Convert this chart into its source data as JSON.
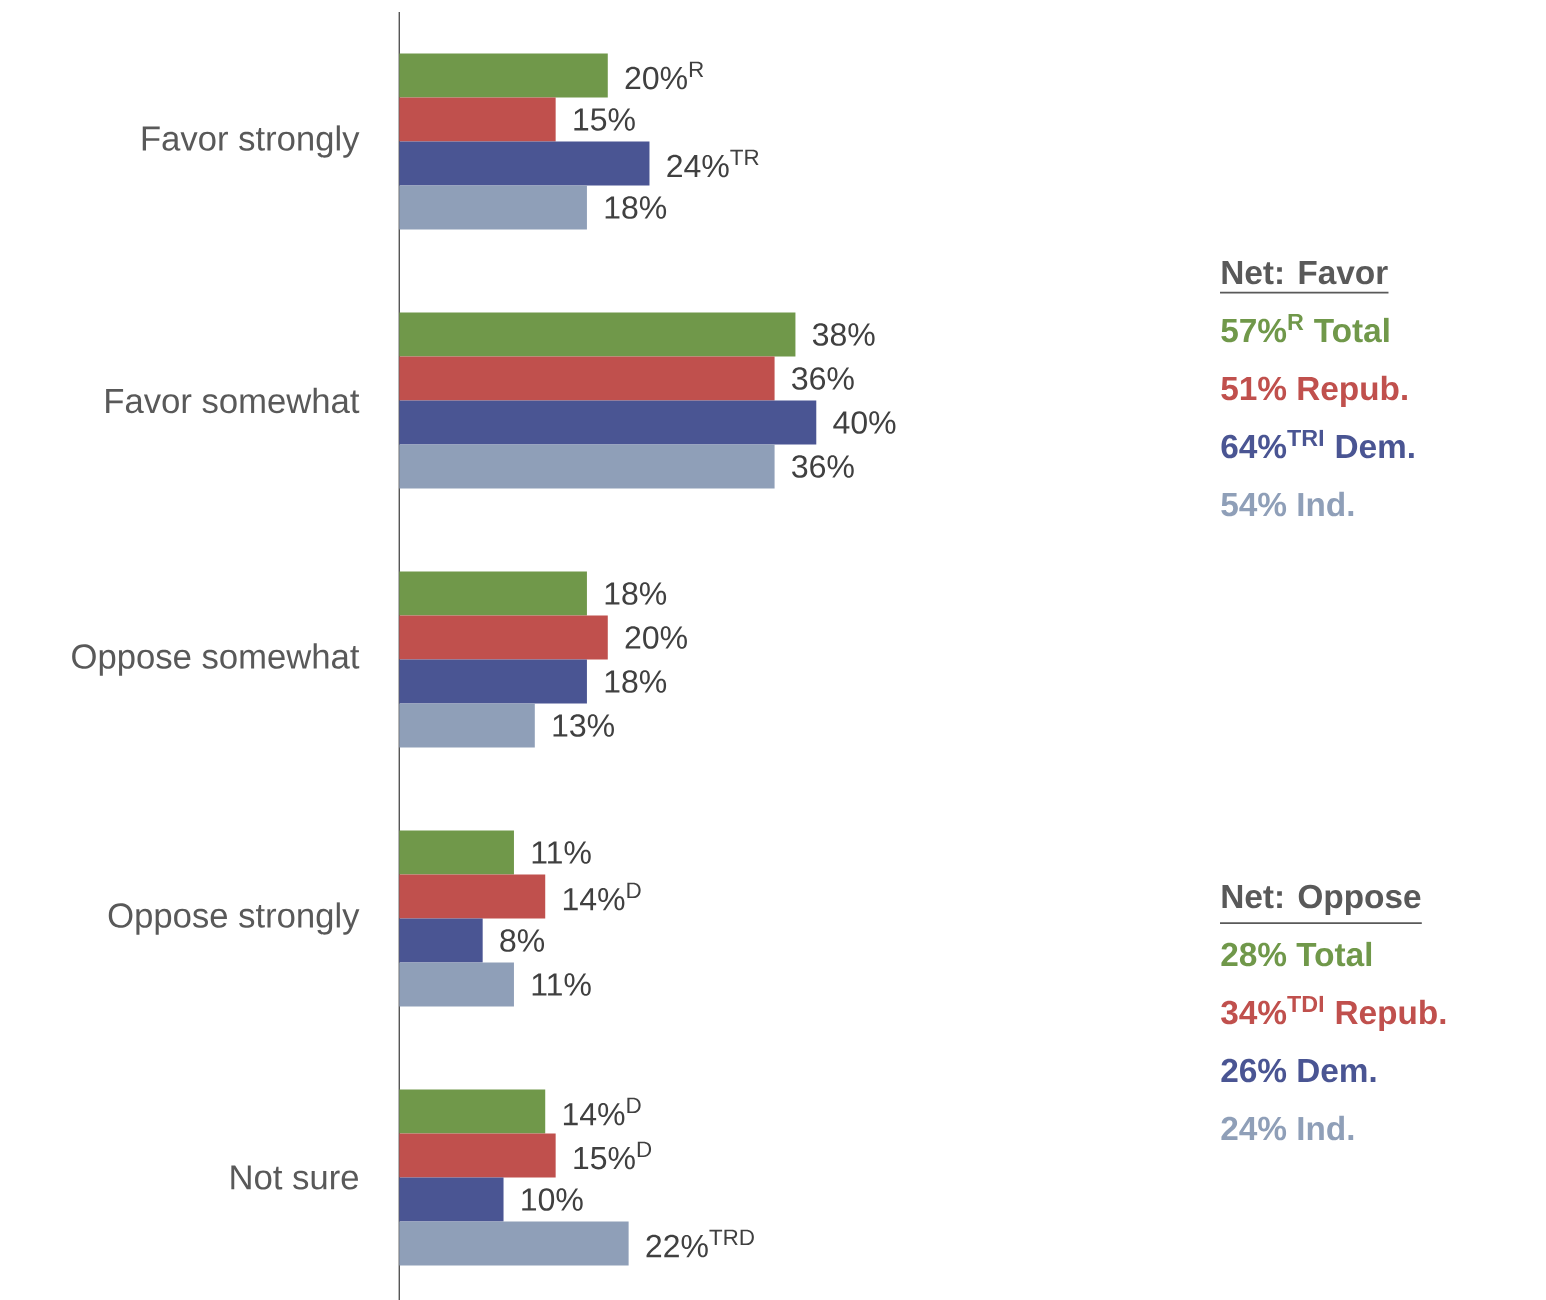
{
  "chart_data": {
    "type": "bar",
    "orientation": "horizontal",
    "categories": [
      "Favor strongly",
      "Favor somewhat",
      "Oppose somewhat",
      "Oppose strongly",
      "Not sure"
    ],
    "tick_labels": "y",
    "series": [
      {
        "color": "#70984a",
        "values": [
          20,
          38,
          18,
          11,
          14
        ],
        "value_labels": [
          "20%$^{R}$",
          "38%",
          "18%",
          "11%",
          "14%$^{D}$"
        ]
      },
      {
        "color": "#c0504d",
        "values": [
          15,
          36,
          20,
          14,
          15
        ],
        "value_labels": [
          "15%",
          "36%",
          "20%",
          "14%$^{D}$",
          "15%$^{D}$"
        ]
      },
      {
        "color": "#4a5593",
        "values": [
          24,
          40,
          18,
          8,
          10
        ],
        "value_labels": [
          "24%$^{TR}$",
          "40%",
          "18%",
          "8%",
          "10%"
        ]
      },
      {
        "color": "#8f9fb8",
        "values": [
          18,
          36,
          13,
          11,
          22
        ],
        "value_labels": [
          "18%",
          "36%",
          "13%",
          "11%",
          "22%$^{TRD}$"
        ]
      }
    ],
    "annotations": [
      "Net: Favor",
      "57%$^{R}$ Total",
      "51% Repub.",
      "64%$^{TRI}$ Dem.",
      "54% Ind.",
      "Net: Oppose",
      "28% Total",
      "34%$^{TDI}$ Repub.",
      "26% Dem.",
      "24% Ind."
    ]
  }
}
